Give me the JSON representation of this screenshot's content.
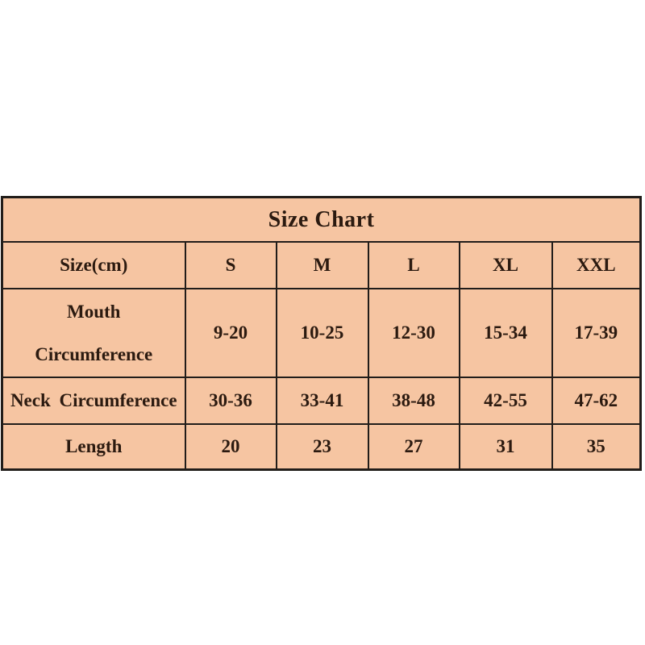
{
  "chart_data": {
    "type": "table",
    "title": "Size Chart",
    "columns": [
      "Size(cm)",
      "S",
      "M",
      "L",
      "XL",
      "XXL"
    ],
    "rows": [
      [
        "Mouth Circumference",
        "9-20",
        "10-25",
        "12-30",
        "15-34",
        "17-39"
      ],
      [
        "Neck Circumference",
        "30-36",
        "33-41",
        "38-48",
        "42-55",
        "47-62"
      ],
      [
        "Length",
        "20",
        "23",
        "27",
        "31",
        "35"
      ]
    ]
  },
  "table": {
    "title": "Size Chart",
    "header": {
      "label": "Size(cm)",
      "s": "S",
      "m": "M",
      "l": "L",
      "xl": "XL",
      "xxl": "XXL"
    },
    "mouth": {
      "label_line1": "Mouth",
      "label_line2": "Circumference",
      "s": "9-20",
      "m": "10-25",
      "l": "12-30",
      "xl": "15-34",
      "xxl": "17-39"
    },
    "neck": {
      "label": "Neck Circumference",
      "s": "30-36",
      "m": "33-41",
      "l": "38-48",
      "xl": "42-55",
      "xxl": "47-62"
    },
    "length": {
      "label": "Length",
      "s": "20",
      "m": "23",
      "l": "27",
      "xl": "31",
      "xxl": "35"
    },
    "colors": {
      "cell_background": "#f6c5a2",
      "border": "#211d1a",
      "text": "#2b1a10",
      "page_background": "#ffffff"
    }
  }
}
